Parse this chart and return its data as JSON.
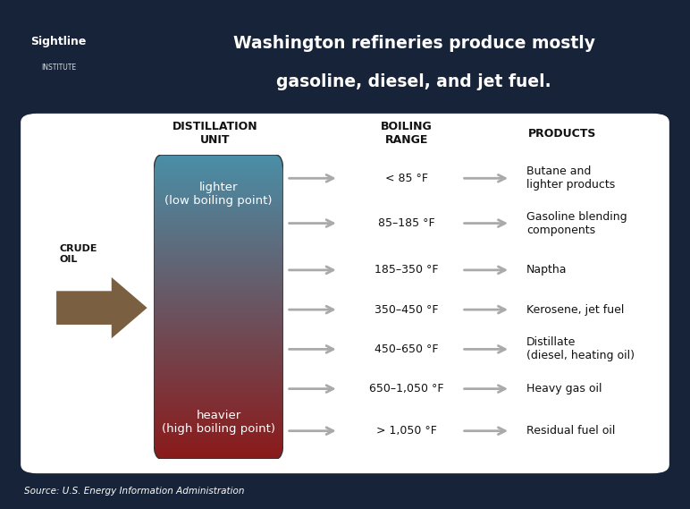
{
  "title_line1": "Washington refineries produce mostly",
  "title_line2": "gasoline, diesel, and jet fuel.",
  "title_color": "#FFFFFF",
  "header_bg": "#162338",
  "content_bg": "#FFFFFF",
  "source_text": "Source: U.S. Energy Information Administration",
  "col_distillation": "DISTILLATION\nUNIT",
  "col_boiling": "BOILING\nRANGE",
  "col_products": "PRODUCTS",
  "lighter_text": "lighter\n(low boiling point)",
  "heavier_text": "heavier\n(high boiling point)",
  "crude_oil_text": "CRUDE\nOIL",
  "boiling_ranges": [
    "< 85 °F",
    "85–185 °F",
    "185–350 °F",
    "350–450 °F",
    "450–650 °F",
    "650–1,050 °F",
    "> 1,050 °F"
  ],
  "products": [
    "Butane and\nlighter products",
    "Gasoline blending\ncomponents",
    "Naptha",
    "Kerosene, jet fuel",
    "Distillate\n(diesel, heating oil)",
    "Heavy gas oil",
    "Residual fuel oil"
  ],
  "arrow_color": "#aaaaaa",
  "crude_arrow_color": "#7a6040",
  "gradient_top": "#4a8fa8",
  "gradient_bottom": "#8b1a1a",
  "text_dark": "#111111",
  "text_white": "#FFFFFF",
  "sightline_name": "Sightline",
  "sightline_inst": "INSTITUTE"
}
